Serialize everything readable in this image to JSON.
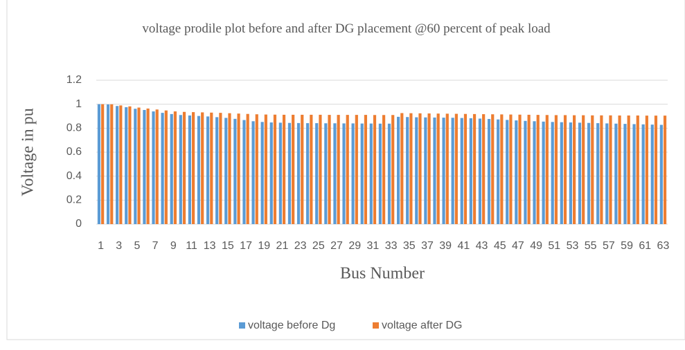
{
  "chart_data": {
    "type": "bar",
    "title": "voltage prodile plot before and after DG placement @60 percent of peak load",
    "x_label": "Bus Number",
    "y_label": "Voltage in pu",
    "categories": [
      1,
      null,
      3,
      null,
      5,
      null,
      7,
      null,
      9,
      null,
      11,
      null,
      13,
      null,
      15,
      null,
      17,
      null,
      19,
      null,
      21,
      null,
      23,
      null,
      25,
      null,
      27,
      null,
      29,
      null,
      31,
      null,
      33,
      null,
      35,
      null,
      37,
      null,
      39,
      null,
      41,
      null,
      43,
      null,
      45,
      null,
      47,
      null,
      49,
      null,
      51,
      null,
      53,
      null,
      55,
      null,
      57,
      null,
      59,
      null,
      61,
      null,
      63
    ],
    "series": [
      {
        "name": "voltage before Dg",
        "color": "#5b9bd5",
        "values": [
          1.0,
          0.998,
          0.985,
          0.975,
          0.962,
          0.952,
          0.94,
          0.928,
          0.918,
          0.91,
          0.906,
          0.902,
          0.898,
          0.892,
          0.886,
          0.878,
          0.868,
          0.858,
          0.852,
          0.848,
          0.846,
          0.844,
          0.843,
          0.842,
          0.842,
          0.841,
          0.841,
          0.84,
          0.84,
          0.839,
          0.839,
          0.838,
          0.838,
          0.895,
          0.893,
          0.891,
          0.89,
          0.889,
          0.888,
          0.887,
          0.885,
          0.883,
          0.88,
          0.877,
          0.873,
          0.869,
          0.865,
          0.861,
          0.858,
          0.855,
          0.852,
          0.85,
          0.848,
          0.846,
          0.844,
          0.842,
          0.84,
          0.838,
          0.836,
          0.834,
          0.832,
          0.83,
          0.828
        ]
      },
      {
        "name": "voltage after DG",
        "color": "#ed7d31",
        "values": [
          1.0,
          0.999,
          0.99,
          0.982,
          0.972,
          0.964,
          0.956,
          0.948,
          0.94,
          0.936,
          0.934,
          0.932,
          0.93,
          0.928,
          0.925,
          0.922,
          0.919,
          0.916,
          0.914,
          0.913,
          0.912,
          0.912,
          0.912,
          0.912,
          0.912,
          0.911,
          0.911,
          0.911,
          0.911,
          0.911,
          0.91,
          0.91,
          0.91,
          0.926,
          0.925,
          0.924,
          0.923,
          0.922,
          0.921,
          0.92,
          0.919,
          0.918,
          0.917,
          0.916,
          0.915,
          0.914,
          0.913,
          0.912,
          0.911,
          0.91,
          0.909,
          0.909,
          0.908,
          0.908,
          0.907,
          0.907,
          0.907,
          0.906,
          0.906,
          0.906,
          0.905,
          0.905,
          0.905
        ]
      }
    ],
    "ylim": [
      0,
      1.2
    ],
    "yticks": [
      0,
      0.2,
      0.4,
      0.6,
      0.8,
      1,
      1.2
    ],
    "grid": true,
    "legend": "bottom"
  }
}
